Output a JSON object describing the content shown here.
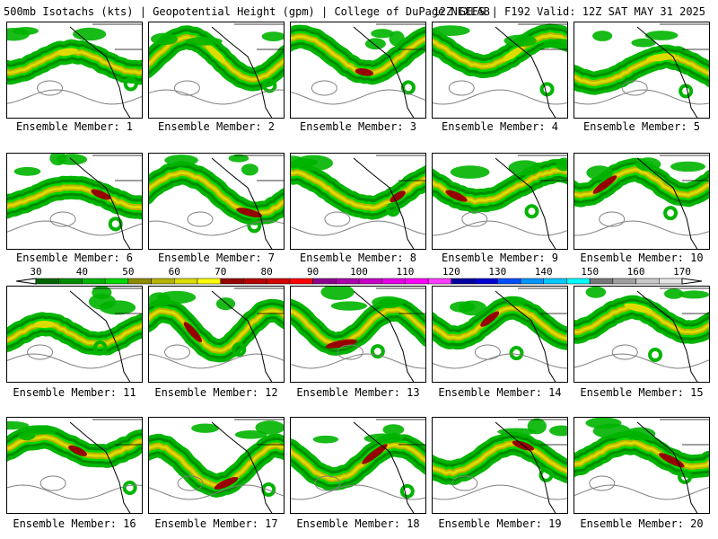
{
  "header": {
    "left": "500mb Isotachs (kts) | Geopotential Height (gpm) | College of DuPage NEXLAB",
    "right": "12Z GEFS | F192 Valid: 12Z SAT MAY 31 2025"
  },
  "members": [
    {
      "caption": "Ensemble Member: 1",
      "jet_max_kt": 70
    },
    {
      "caption": "Ensemble Member: 2",
      "jet_max_kt": 70
    },
    {
      "caption": "Ensemble Member: 3",
      "jet_max_kt": 80
    },
    {
      "caption": "Ensemble Member: 4",
      "jet_max_kt": 70
    },
    {
      "caption": "Ensemble Member: 5",
      "jet_max_kt": 70
    },
    {
      "caption": "Ensemble Member: 6",
      "jet_max_kt": 80
    },
    {
      "caption": "Ensemble Member: 7",
      "jet_max_kt": 80
    },
    {
      "caption": "Ensemble Member: 8",
      "jet_max_kt": 80
    },
    {
      "caption": "Ensemble Member: 9",
      "jet_max_kt": 80
    },
    {
      "caption": "Ensemble Member: 10",
      "jet_max_kt": 80
    },
    {
      "caption": "Ensemble Member: 11",
      "jet_max_kt": 70
    },
    {
      "caption": "Ensemble Member: 12",
      "jet_max_kt": 80
    },
    {
      "caption": "Ensemble Member: 13",
      "jet_max_kt": 80
    },
    {
      "caption": "Ensemble Member: 14",
      "jet_max_kt": 80
    },
    {
      "caption": "Ensemble Member: 15",
      "jet_max_kt": 70
    },
    {
      "caption": "Ensemble Member: 16",
      "jet_max_kt": 80
    },
    {
      "caption": "Ensemble Member: 17",
      "jet_max_kt": 80
    },
    {
      "caption": "Ensemble Member: 18",
      "jet_max_kt": 80
    },
    {
      "caption": "Ensemble Member: 19",
      "jet_max_kt": 80
    },
    {
      "caption": "Ensemble Member: 20",
      "jet_max_kt": 80
    }
  ],
  "colorbar": {
    "ticks": [
      "30",
      "40",
      "50",
      "60",
      "70",
      "80",
      "90",
      "100",
      "110",
      "120",
      "130",
      "140",
      "150",
      "160",
      "170"
    ],
    "bins": [
      {
        "from": 30,
        "to": 35,
        "color": "#006400"
      },
      {
        "from": 35,
        "to": 40,
        "color": "#008c00"
      },
      {
        "from": 40,
        "to": 45,
        "color": "#00b400"
      },
      {
        "from": 45,
        "to": 50,
        "color": "#00d800"
      },
      {
        "from": 50,
        "to": 55,
        "color": "#8c8c00"
      },
      {
        "from": 55,
        "to": 60,
        "color": "#b4b400"
      },
      {
        "from": 60,
        "to": 65,
        "color": "#dcdc00"
      },
      {
        "from": 65,
        "to": 70,
        "color": "#ffff00"
      },
      {
        "from": 70,
        "to": 75,
        "color": "#960000"
      },
      {
        "from": 75,
        "to": 80,
        "color": "#b40000"
      },
      {
        "from": 80,
        "to": 85,
        "color": "#d20000"
      },
      {
        "from": 85,
        "to": 90,
        "color": "#ff0000"
      },
      {
        "from": 90,
        "to": 95,
        "color": "#8c008c"
      },
      {
        "from": 95,
        "to": 100,
        "color": "#aa00aa"
      },
      {
        "from": 100,
        "to": 105,
        "color": "#c800c8"
      },
      {
        "from": 105,
        "to": 110,
        "color": "#e600e6"
      },
      {
        "from": 110,
        "to": 115,
        "color": "#ff00ff"
      },
      {
        "from": 115,
        "to": 120,
        "color": "#ff3cff"
      },
      {
        "from": 120,
        "to": 125,
        "color": "#0000a0"
      },
      {
        "from": 125,
        "to": 130,
        "color": "#0000d2"
      },
      {
        "from": 130,
        "to": 135,
        "color": "#0050ff"
      },
      {
        "from": 135,
        "to": 140,
        "color": "#0096ff"
      },
      {
        "from": 140,
        "to": 145,
        "color": "#00c8ff"
      },
      {
        "from": 145,
        "to": 150,
        "color": "#00ffff"
      },
      {
        "from": 150,
        "to": 155,
        "color": "#787878"
      },
      {
        "from": 155,
        "to": 160,
        "color": "#a0a0a0"
      },
      {
        "from": 160,
        "to": 165,
        "color": "#c8c8c8"
      },
      {
        "from": 165,
        "to": 170,
        "color": "#e6e6e6"
      }
    ]
  },
  "colors": {
    "height_contour": "#808080",
    "coastline": "#000000",
    "jet_core": "#960000"
  }
}
